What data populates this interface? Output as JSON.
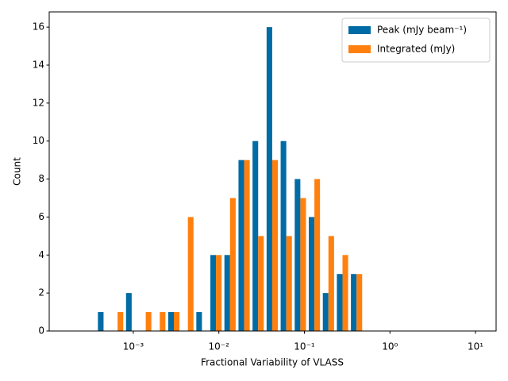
{
  "chart_data": {
    "type": "histogram",
    "xlabel": "Fractional Variability of VLASS",
    "ylabel": "Count",
    "xscale": "log",
    "bins": [
      0.0003715,
      0.0005424,
      0.0007917,
      0.001156,
      0.001688,
      0.002463,
      0.003596,
      0.005249,
      0.007663,
      0.01118,
      0.01633,
      0.02384,
      0.0348,
      0.0508,
      0.07416,
      0.1083,
      0.158,
      0.2307,
      0.3368,
      0.4916
    ],
    "series": [
      {
        "name": "Peak (mJy beam⁻¹)",
        "color": "#006ba4",
        "values": [
          1,
          0,
          2,
          0,
          0,
          1,
          0,
          1,
          4,
          4,
          9,
          10,
          16,
          10,
          8,
          6,
          2,
          3,
          3
        ]
      },
      {
        "name": "Integrated (mJy)",
        "color": "#ff800e",
        "values": [
          0,
          1,
          0,
          1,
          1,
          1,
          6,
          0,
          4,
          7,
          9,
          5,
          9,
          5,
          7,
          8,
          5,
          4,
          3
        ]
      }
    ],
    "xlim": [
      0.000104,
      17.4
    ],
    "ylim": [
      0,
      16.8
    ],
    "xticks": [
      {
        "value": 0.001,
        "label": "10⁻³"
      },
      {
        "value": 0.01,
        "label": "10⁻²"
      },
      {
        "value": 0.1,
        "label": "10⁻¹"
      },
      {
        "value": 1,
        "label": "10⁰"
      },
      {
        "value": 10,
        "label": "10¹"
      }
    ],
    "yticks": [
      0,
      2,
      4,
      6,
      8,
      10,
      12,
      14,
      16
    ],
    "legend": "upper right"
  }
}
